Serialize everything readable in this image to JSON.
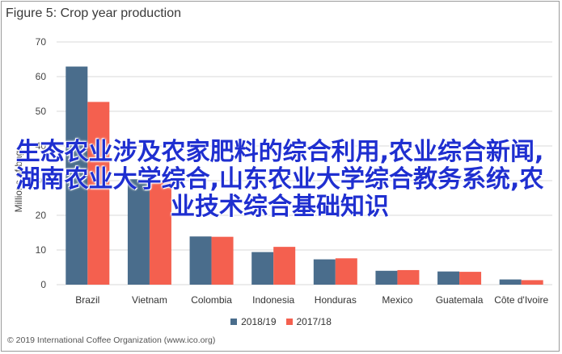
{
  "title": "Figure 5: Crop year production",
  "footer": "© 2019 International Coffee Organization (www.ico.org)",
  "watermark_text": "生态农业涉及农家肥料的综合利用,农业综合新闻,湖南农业大学综合,山东农业大学综合教务系统,农业技术综合基础知识",
  "chart_data": {
    "type": "bar",
    "title": "Figure 5: Crop year production",
    "ylabel": "Millions of bags",
    "xlabel": "",
    "ylim": [
      0,
      70
    ],
    "yticks": [
      "0",
      "10",
      "20",
      "30",
      "40",
      "50",
      "60",
      "70"
    ],
    "grid": true,
    "legend_position": "bottom",
    "categories": [
      "Brazil",
      "Vietnam",
      "Colombia",
      "Indonesia",
      "Honduras",
      "Mexico",
      "Guatemala",
      "Côte d'Ivoire"
    ],
    "series": [
      {
        "name": "2018/19",
        "color": "#4a6d8c",
        "values": [
          62.9,
          30.4,
          13.9,
          9.4,
          7.3,
          4.0,
          3.8,
          1.5
        ]
      },
      {
        "name": "2017/18",
        "color": "#f4604f",
        "values": [
          52.7,
          29.5,
          13.8,
          10.9,
          7.6,
          4.2,
          3.7,
          1.3
        ]
      }
    ]
  }
}
